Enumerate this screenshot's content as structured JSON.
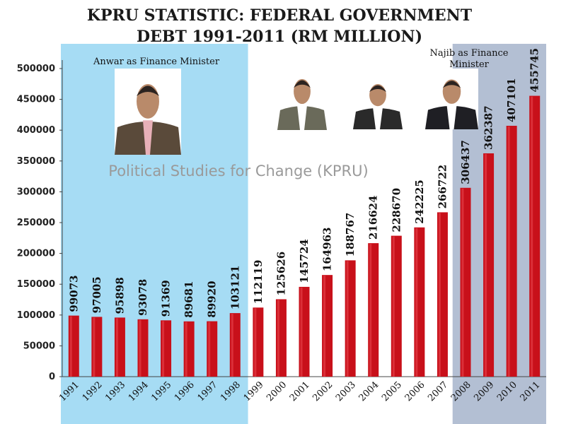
{
  "chart_data": {
    "type": "bar",
    "title_line1": "KPRU STATISTIC: FEDERAL GOVERNMENT",
    "title_line2": "DEBT 1991-2011 (RM MILLION)",
    "categories": [
      "1991",
      "1992",
      "1993",
      "1994",
      "1995",
      "1996",
      "1997",
      "1998",
      "1999",
      "2000",
      "2001",
      "2002",
      "2003",
      "2004",
      "2005",
      "2006",
      "2007",
      "2008",
      "2009",
      "2010",
      "2011"
    ],
    "values": [
      99073,
      97005,
      95898,
      93078,
      91369,
      89681,
      89920,
      103121,
      112119,
      125626,
      145724,
      164963,
      188767,
      216624,
      228670,
      242225,
      266722,
      306437,
      362387,
      407101,
      455745
    ],
    "ylim": [
      0,
      500000
    ],
    "yticks": [
      0,
      50000,
      100000,
      150000,
      200000,
      250000,
      300000,
      350000,
      400000,
      450000,
      500000
    ],
    "bar_color": "#c8101a",
    "regions": [
      {
        "label": "Anwar as Finance Minister",
        "start": "1991",
        "end": "1998",
        "color": "#a6dcf4"
      },
      {
        "label_line1": "Najib as Finance",
        "label_line2": "Minister",
        "start": "2008",
        "end": "2011",
        "color": "#b3bfd3"
      }
    ],
    "watermark": "Political Studies for Change (KPRU)"
  },
  "photos": [
    {
      "name": "anwar-photo",
      "suit": "#5a4a3a",
      "shirt": "#e8b0b8"
    },
    {
      "name": "mahathir-photo",
      "suit": "#6a6a5a",
      "shirt": "#ffffff"
    },
    {
      "name": "abdullah-photo",
      "suit": "#2a2a2a",
      "shirt": "#ffffff"
    },
    {
      "name": "najib-photo",
      "suit": "#1f1f24",
      "shirt": "#ffffff"
    }
  ]
}
